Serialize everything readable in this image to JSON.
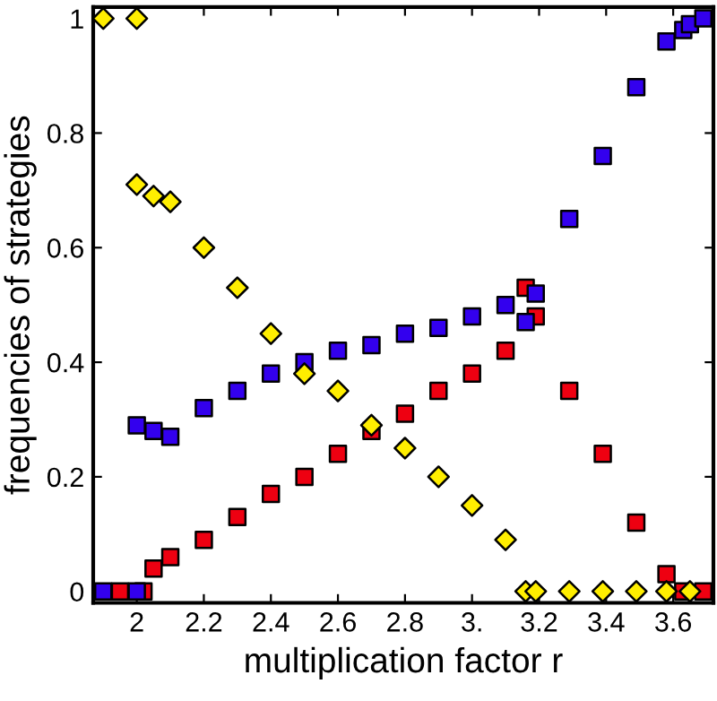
{
  "chart_data": {
    "type": "scatter",
    "xlabel": "multiplication factor r",
    "ylabel": "frequencies of strategies",
    "xlim": [
      1.87,
      3.72
    ],
    "ylim": [
      -0.02,
      1.02
    ],
    "xticks": [
      2,
      {
        "value": 2.2,
        "label": "2.2"
      },
      {
        "value": 2.4,
        "label": "2.4"
      },
      {
        "value": 2.6,
        "label": "2.6"
      },
      {
        "value": 2.8,
        "label": "2.8"
      },
      {
        "value": 3.0,
        "label": "3."
      },
      {
        "value": 3.2,
        "label": "3.2"
      },
      {
        "value": 3.4,
        "label": "3.4"
      },
      {
        "value": 3.6,
        "label": "3.6"
      }
    ],
    "yticks": [
      0,
      {
        "value": 0.2,
        "label": "0.2"
      },
      {
        "value": 0.4,
        "label": "0.4"
      },
      {
        "value": 0.6,
        "label": "0.6"
      },
      {
        "value": 0.8,
        "label": "0.8"
      },
      1
    ],
    "grid": false,
    "legend": false,
    "series": [
      {
        "color": "#ffee00",
        "marker": "diamond",
        "x": [
          1.9,
          2.0,
          2.0,
          2.05,
          2.1,
          2.2,
          2.3,
          2.4,
          2.5,
          2.6,
          2.7,
          2.8,
          2.9,
          3.0,
          3.1,
          3.16,
          3.19,
          3.29,
          3.39,
          3.49,
          3.58,
          3.65
        ],
        "values": [
          1,
          1,
          0.71,
          0.69,
          0.68,
          0.6,
          0.53,
          0.45,
          0.38,
          0.35,
          0.29,
          0.25,
          0.2,
          0.15,
          0.09,
          0,
          0,
          0,
          0,
          0,
          0,
          0
        ]
      },
      {
        "color": "#3300ee",
        "marker": "square",
        "x": [
          1.9,
          2.0,
          2.0,
          2.05,
          2.1,
          2.2,
          2.3,
          2.4,
          2.5,
          2.6,
          2.7,
          2.8,
          2.9,
          3.0,
          3.1,
          3.16,
          3.19,
          3.29,
          3.39,
          3.49,
          3.58,
          3.63,
          3.65,
          3.69
        ],
        "values": [
          0,
          0,
          0.29,
          0.28,
          0.27,
          0.32,
          0.35,
          0.38,
          0.4,
          0.42,
          0.43,
          0.45,
          0.46,
          0.48,
          0.5,
          0.47,
          0.52,
          0.65,
          0.76,
          0.88,
          0.96,
          0.98,
          0.99,
          1.0
        ]
      },
      {
        "color": "#ee0011",
        "marker": "square",
        "x": [
          1.95,
          2.02,
          2.05,
          2.1,
          2.2,
          2.3,
          2.4,
          2.5,
          2.6,
          2.7,
          2.8,
          2.9,
          3.0,
          3.1,
          3.16,
          3.19,
          3.29,
          3.39,
          3.49,
          3.58,
          3.63,
          3.69
        ],
        "values": [
          0,
          0,
          0.04,
          0.06,
          0.09,
          0.13,
          0.17,
          0.2,
          0.24,
          0.28,
          0.31,
          0.35,
          0.38,
          0.42,
          0.53,
          0.48,
          0.35,
          0.24,
          0.12,
          0.03,
          0,
          0
        ]
      }
    ]
  }
}
